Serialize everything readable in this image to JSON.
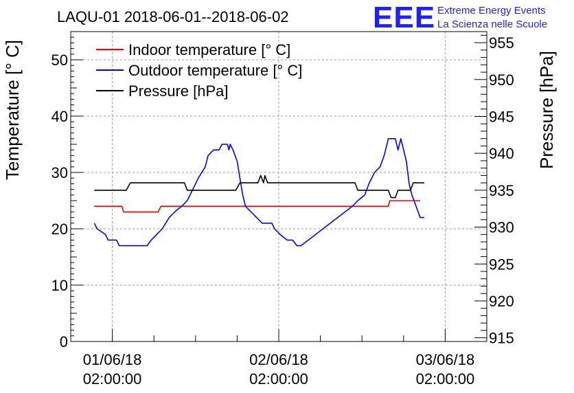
{
  "page_title": "LAQU-01 2018-06-01--2018-06-02",
  "logo": {
    "mark": "EEE",
    "line1": "Extreme Energy Events",
    "line2": "La Scienza nelle Scuole",
    "color": "#1f1fff"
  },
  "chart_data": {
    "type": "line",
    "title": "LAQU-01 2018-06-01--2018-06-02",
    "ylabel": "Temperature [° C]",
    "y2label": "Pressure [hPa]",
    "ylim": [
      0,
      55
    ],
    "y2lim": [
      914.5,
      956.5
    ],
    "xlim": [
      -3,
      27
    ],
    "x_unit": "hours since 01/06/18 02:00:00",
    "yticks": [
      0,
      10,
      20,
      30,
      40,
      50
    ],
    "y2ticks": [
      915,
      920,
      925,
      930,
      935,
      940,
      945,
      950,
      955
    ],
    "xticks": [
      {
        "x": 0,
        "line1": "01/06/18",
        "line2": "02:00:00"
      },
      {
        "x": 12,
        "line1": "02/06/18",
        "line2": "02:00:00"
      },
      {
        "x": 24,
        "line1": "03/06/18",
        "line2": "02:00:00"
      }
    ],
    "grid": true,
    "legend_position": "top-left",
    "series": [
      {
        "name": "Indoor temperature [° C]",
        "axis": "left",
        "color": "#ff0000",
        "points": [
          [
            -1.3,
            24
          ],
          [
            0.7,
            24
          ],
          [
            0.8,
            23
          ],
          [
            3.3,
            23
          ],
          [
            3.5,
            24
          ],
          [
            19.9,
            24
          ],
          [
            20.0,
            25
          ],
          [
            22.2,
            25
          ]
        ]
      },
      {
        "name": "Outdoor temperature [° C]",
        "axis": "left",
        "color": "#0000ff",
        "points": [
          [
            -1.3,
            21
          ],
          [
            -1.1,
            20
          ],
          [
            -0.5,
            19
          ],
          [
            -0.3,
            18
          ],
          [
            0.3,
            18
          ],
          [
            0.5,
            17
          ],
          [
            2.5,
            17
          ],
          [
            2.8,
            18
          ],
          [
            3.2,
            19
          ],
          [
            3.6,
            20
          ],
          [
            4.1,
            22
          ],
          [
            4.5,
            23
          ],
          [
            5.0,
            24
          ],
          [
            5.4,
            25
          ],
          [
            5.8,
            27
          ],
          [
            6.2,
            29
          ],
          [
            6.7,
            31
          ],
          [
            6.9,
            33
          ],
          [
            7.3,
            34
          ],
          [
            7.7,
            34
          ],
          [
            7.9,
            35
          ],
          [
            8.3,
            35
          ],
          [
            8.4,
            34
          ],
          [
            8.5,
            35
          ],
          [
            8.7,
            34
          ],
          [
            9.0,
            32
          ],
          [
            9.2,
            29
          ],
          [
            9.4,
            26
          ],
          [
            9.6,
            24
          ],
          [
            10.0,
            23
          ],
          [
            10.4,
            22
          ],
          [
            10.8,
            21
          ],
          [
            11.5,
            21
          ],
          [
            11.7,
            20
          ],
          [
            12.1,
            19
          ],
          [
            12.6,
            18
          ],
          [
            13.0,
            18
          ],
          [
            13.3,
            17
          ],
          [
            13.6,
            17
          ],
          [
            17.3,
            24
          ],
          [
            17.7,
            25
          ],
          [
            18.2,
            26
          ],
          [
            18.5,
            28
          ],
          [
            18.9,
            30
          ],
          [
            19.3,
            31
          ],
          [
            19.6,
            33
          ],
          [
            19.9,
            36
          ],
          [
            20.4,
            36
          ],
          [
            20.6,
            34
          ],
          [
            20.8,
            36
          ],
          [
            20.9,
            35
          ],
          [
            21.2,
            32
          ],
          [
            21.4,
            28
          ],
          [
            21.6,
            26
          ],
          [
            21.9,
            24
          ],
          [
            22.2,
            22
          ],
          [
            22.5,
            22
          ]
        ]
      },
      {
        "name": "Pressure [hPa]",
        "axis": "right",
        "color": "#000000",
        "points": [
          [
            -1.3,
            935
          ],
          [
            1.0,
            935
          ],
          [
            1.3,
            936
          ],
          [
            5.2,
            936
          ],
          [
            5.4,
            935
          ],
          [
            8.9,
            935
          ],
          [
            9.2,
            936
          ],
          [
            10.5,
            936
          ],
          [
            10.7,
            937
          ],
          [
            10.9,
            936
          ],
          [
            11.0,
            937
          ],
          [
            11.2,
            936
          ],
          [
            17.5,
            936
          ],
          [
            17.7,
            935
          ],
          [
            19.5,
            935
          ],
          [
            19.9,
            935
          ],
          [
            20.1,
            934
          ],
          [
            20.4,
            934
          ],
          [
            20.6,
            935
          ],
          [
            21.5,
            935
          ],
          [
            21.7,
            936
          ],
          [
            22.5,
            936
          ]
        ]
      }
    ]
  }
}
